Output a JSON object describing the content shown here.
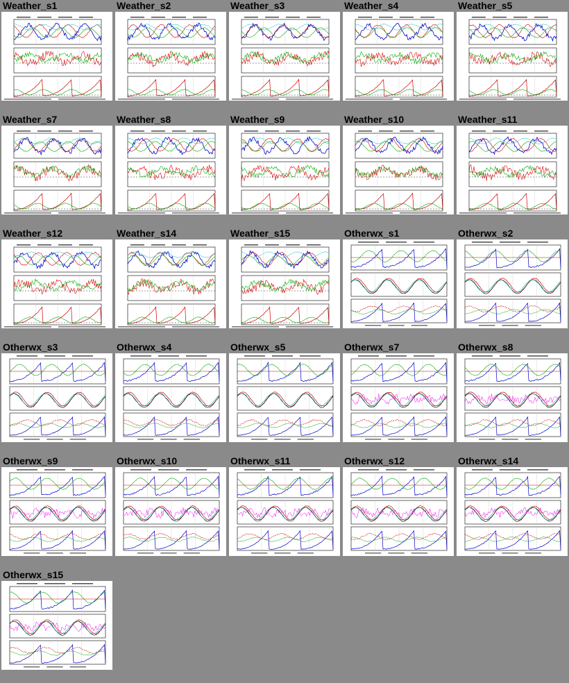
{
  "rows": [
    [
      {
        "title": "Weather_s1",
        "kind": "weather"
      },
      {
        "title": "Weather_s2",
        "kind": "weather"
      },
      {
        "title": "Weather_s3",
        "kind": "weather"
      },
      {
        "title": "Weather_s4",
        "kind": "weather"
      },
      {
        "title": "Weather_s5",
        "kind": "weather"
      }
    ],
    [
      {
        "title": "Weather_s7",
        "kind": "weather"
      },
      {
        "title": "Weather_s8",
        "kind": "weather"
      },
      {
        "title": "Weather_s9",
        "kind": "weather"
      },
      {
        "title": "Weather_s10",
        "kind": "weather"
      },
      {
        "title": "Weather_s11",
        "kind": "weather"
      }
    ],
    [
      {
        "title": "Weather_s12",
        "kind": "weather"
      },
      {
        "title": "Weather_s14",
        "kind": "weather"
      },
      {
        "title": "Weather_s15",
        "kind": "weather"
      },
      {
        "title": "Otherwx_s1",
        "kind": "otherwx"
      },
      {
        "title": "Otherwx_s2",
        "kind": "otherwx"
      }
    ],
    [
      {
        "title": "Otherwx_s3",
        "kind": "otherwx"
      },
      {
        "title": "Otherwx_s4",
        "kind": "otherwx"
      },
      {
        "title": "Otherwx_s5",
        "kind": "otherwx"
      },
      {
        "title": "Otherwx_s7",
        "kind": "otherwx"
      },
      {
        "title": "Otherwx_s8",
        "kind": "otherwx"
      }
    ],
    [
      {
        "title": "Otherwx_s9",
        "kind": "otherwx"
      },
      {
        "title": "Otherwx_s10",
        "kind": "otherwx"
      },
      {
        "title": "Otherwx_s11",
        "kind": "otherwx"
      },
      {
        "title": "Otherwx_s12",
        "kind": "otherwx"
      },
      {
        "title": "Otherwx_s14",
        "kind": "otherwx"
      }
    ],
    [
      {
        "title": "Otherwx_s15",
        "kind": "otherwx"
      }
    ]
  ]
}
